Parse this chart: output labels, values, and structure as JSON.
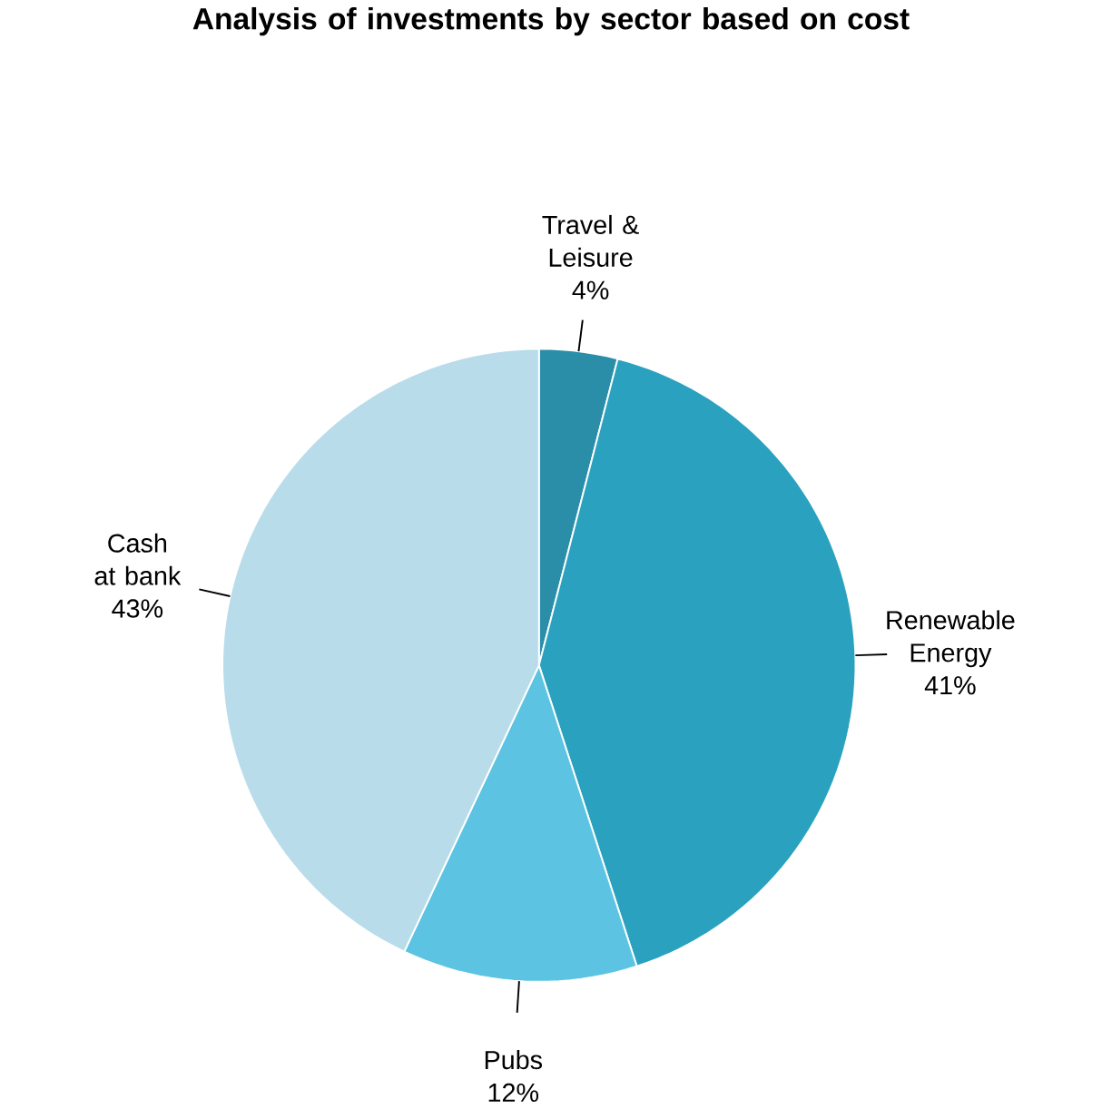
{
  "chart_data": {
    "type": "pie",
    "title": "Analysis of investments by sector based on cost",
    "categories": [
      "Travel & Leisure",
      "Renewable Energy",
      "Pubs",
      "Cash at bank"
    ],
    "values": [
      4,
      41,
      12,
      43
    ],
    "value_labels": [
      "4%",
      "41%",
      "12%",
      "43%"
    ],
    "colors": [
      "#2a8ea8",
      "#2aa2bf",
      "#5cc4e2",
      "#b9dcea"
    ]
  }
}
